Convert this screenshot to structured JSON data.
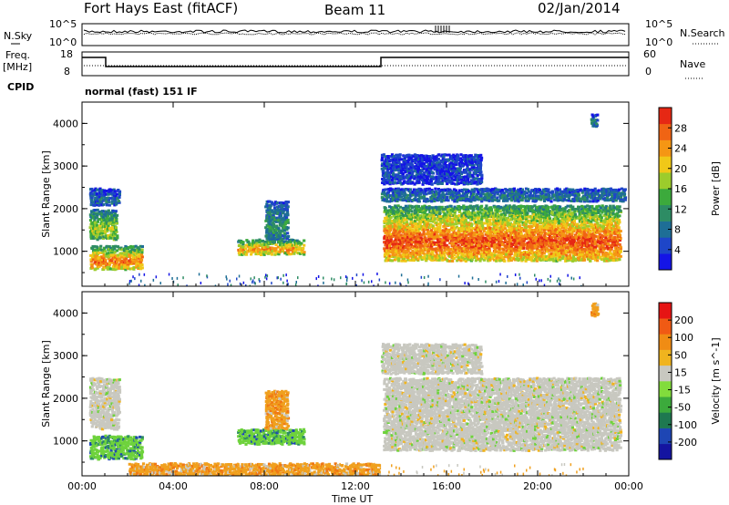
{
  "header": {
    "title": "Fort Hays East (fitACF)",
    "beam": "Beam 11",
    "date": "02/Jan/2014"
  },
  "top_panels": {
    "nsky_label": "N.Sky",
    "nsky_ticks": [
      "10^5",
      "10^0"
    ],
    "nsearch_label": "N.Search",
    "nsearch_ticks": [
      "10^5",
      "10^0"
    ],
    "freq_label_1": "Freq.",
    "freq_label_2": "[MHz]",
    "freq_ticks": [
      "18",
      "8"
    ],
    "nave_label": "Nave",
    "nave_ticks": [
      "60",
      "0"
    ],
    "cpid_label": "CPID",
    "cpid_text": "normal (fast) 151 IF"
  },
  "chart_data": [
    {
      "type": "heatmap",
      "name": "power",
      "ylabel": "Slant Range [km]",
      "ylim": [
        180,
        4500
      ],
      "yticks": [
        "1000",
        "2000",
        "3000",
        "4000"
      ],
      "xlabel": "Time UT",
      "xlim": [
        "00:00",
        "24:00"
      ],
      "xticks": [
        "00:00",
        "04:00",
        "08:00",
        "12:00",
        "16:00",
        "20:00",
        "00:00"
      ],
      "colorbar": {
        "label": "Power [dB]",
        "ticks": [
          "4",
          "8",
          "12",
          "16",
          "20",
          "24",
          "28"
        ],
        "colors": [
          "#1414e6",
          "#1e46c8",
          "#1e6e96",
          "#2d8c64",
          "#3caa3c",
          "#9ccc2c",
          "#f0c818",
          "#f59614",
          "#f06414",
          "#e62814"
        ]
      },
      "echo_regions": [
        {
          "t": [
            0.3,
            2.6
          ],
          "range": [
            600,
            1150
          ],
          "peak": 0.9
        },
        {
          "t": [
            0.3,
            1.5
          ],
          "range": [
            1300,
            2000
          ],
          "peak": 0.6
        },
        {
          "t": [
            0.3,
            1.6
          ],
          "range": [
            2100,
            2500
          ],
          "peak": 0.2
        },
        {
          "t": [
            6.8,
            9.7
          ],
          "range": [
            950,
            1300
          ],
          "peak": 0.8
        },
        {
          "t": [
            8.0,
            9.0
          ],
          "range": [
            1300,
            2200
          ],
          "peak": 0.35
        },
        {
          "t": [
            13.2,
            23.6
          ],
          "range": [
            800,
            2100
          ],
          "peak": 0.95
        },
        {
          "t": [
            13.1,
            23.8
          ],
          "range": [
            2200,
            2500
          ],
          "peak": 0.25
        },
        {
          "t": [
            13.1,
            17.5
          ],
          "range": [
            2600,
            3300
          ],
          "peak": 0.1
        },
        {
          "t": [
            22.3,
            22.6
          ],
          "range": [
            3950,
            4250
          ],
          "peak": 0.25
        }
      ]
    },
    {
      "type": "heatmap",
      "name": "velocity",
      "ylabel": "Slant Range [km]",
      "ylim": [
        180,
        4500
      ],
      "yticks": [
        "1000",
        "2000",
        "3000",
        "4000"
      ],
      "xlabel": "Time UT",
      "xlim": [
        "00:00",
        "24:00"
      ],
      "xticks": [
        "00:00",
        "04:00",
        "08:00",
        "12:00",
        "16:00",
        "20:00",
        "00:00"
      ],
      "colorbar": {
        "label": "Velocity [m s^-1]",
        "ticks": [
          "200",
          "100",
          "50",
          "15",
          "-15",
          "-50",
          "-100",
          "-200"
        ],
        "colors": [
          "#1414a0",
          "#1e46b4",
          "#1e7850",
          "#3caa3c",
          "#82dc3c",
          "#c8c8c0",
          "#f0b41e",
          "#f08c14",
          "#f05a14",
          "#e61414"
        ]
      },
      "echo_regions": [
        {
          "t": [
            0.3,
            2.6
          ],
          "range": [
            600,
            1150
          ],
          "class": "green"
        },
        {
          "t": [
            0.3,
            1.6
          ],
          "range": [
            1300,
            2500
          ],
          "class": "gray"
        },
        {
          "t": [
            6.8,
            9.7
          ],
          "range": [
            950,
            1300
          ],
          "class": "green"
        },
        {
          "t": [
            8.0,
            9.0
          ],
          "range": [
            1300,
            2200
          ],
          "class": "orange"
        },
        {
          "t": [
            13.2,
            23.6
          ],
          "range": [
            800,
            2500
          ],
          "class": "gray"
        },
        {
          "t": [
            13.1,
            17.5
          ],
          "range": [
            2600,
            3300
          ],
          "class": "gray"
        },
        {
          "t": [
            2.0,
            13.0
          ],
          "range": [
            180,
            500
          ],
          "class": "orange"
        },
        {
          "t": [
            22.3,
            22.6
          ],
          "range": [
            3950,
            4250
          ],
          "class": "orange"
        }
      ]
    }
  ]
}
